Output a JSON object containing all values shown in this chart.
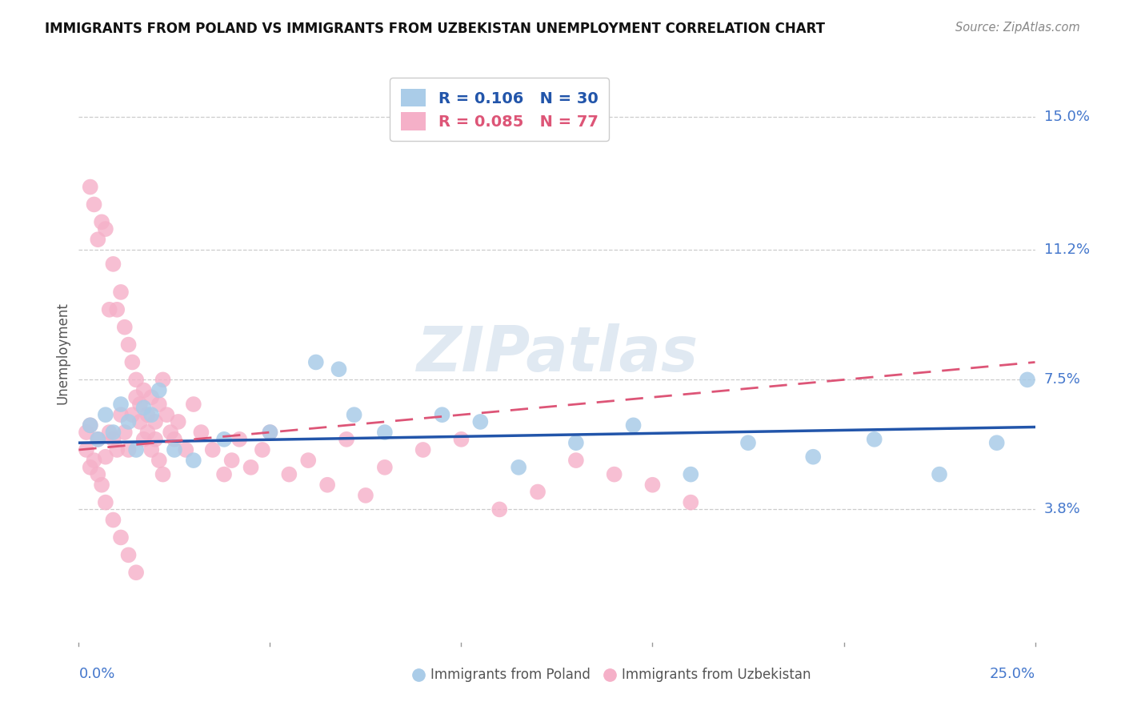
{
  "title": "IMMIGRANTS FROM POLAND VS IMMIGRANTS FROM UZBEKISTAN UNEMPLOYMENT CORRELATION CHART",
  "source": "Source: ZipAtlas.com",
  "ylabel": "Unemployment",
  "ytick_labels": [
    "15.0%",
    "11.2%",
    "7.5%",
    "3.8%"
  ],
  "ytick_values": [
    0.15,
    0.112,
    0.075,
    0.038
  ],
  "xlim": [
    0.0,
    0.25
  ],
  "ylim": [
    0.0,
    0.165
  ],
  "legend_poland_R": "0.106",
  "legend_poland_N": "30",
  "legend_uzbekistan_R": "0.085",
  "legend_uzbekistan_N": "77",
  "poland_color": "#aacce8",
  "uzbekistan_color": "#f5b0c8",
  "poland_line_color": "#2255aa",
  "uzbekistan_line_color": "#dd5577",
  "poland_line_slope": 0.018,
  "poland_line_intercept": 0.057,
  "uzbekistan_line_slope": 0.1,
  "uzbekistan_line_intercept": 0.055,
  "poland_x": [
    0.003,
    0.005,
    0.007,
    0.009,
    0.011,
    0.013,
    0.015,
    0.017,
    0.019,
    0.021,
    0.025,
    0.03,
    0.038,
    0.05,
    0.062,
    0.068,
    0.072,
    0.08,
    0.095,
    0.105,
    0.115,
    0.13,
    0.145,
    0.16,
    0.175,
    0.192,
    0.208,
    0.225,
    0.24,
    0.248
  ],
  "poland_y": [
    0.062,
    0.058,
    0.065,
    0.06,
    0.068,
    0.063,
    0.055,
    0.067,
    0.065,
    0.072,
    0.055,
    0.052,
    0.058,
    0.06,
    0.08,
    0.078,
    0.065,
    0.06,
    0.065,
    0.063,
    0.05,
    0.057,
    0.062,
    0.048,
    0.057,
    0.053,
    0.058,
    0.048,
    0.057,
    0.075
  ],
  "uzbekistan_x": [
    0.002,
    0.002,
    0.003,
    0.003,
    0.004,
    0.004,
    0.005,
    0.005,
    0.006,
    0.006,
    0.007,
    0.007,
    0.008,
    0.008,
    0.009,
    0.009,
    0.01,
    0.01,
    0.011,
    0.011,
    0.012,
    0.012,
    0.013,
    0.013,
    0.014,
    0.014,
    0.015,
    0.015,
    0.016,
    0.016,
    0.017,
    0.017,
    0.018,
    0.018,
    0.019,
    0.019,
    0.02,
    0.02,
    0.021,
    0.021,
    0.022,
    0.022,
    0.023,
    0.024,
    0.025,
    0.026,
    0.028,
    0.03,
    0.032,
    0.035,
    0.038,
    0.04,
    0.042,
    0.045,
    0.048,
    0.05,
    0.055,
    0.06,
    0.065,
    0.07,
    0.075,
    0.08,
    0.09,
    0.1,
    0.11,
    0.12,
    0.13,
    0.14,
    0.15,
    0.16,
    0.003,
    0.005,
    0.007,
    0.009,
    0.011,
    0.013,
    0.015
  ],
  "uzbekistan_y": [
    0.06,
    0.055,
    0.13,
    0.05,
    0.125,
    0.052,
    0.115,
    0.058,
    0.12,
    0.045,
    0.118,
    0.053,
    0.095,
    0.06,
    0.108,
    0.058,
    0.095,
    0.055,
    0.1,
    0.065,
    0.09,
    0.06,
    0.085,
    0.055,
    0.08,
    0.065,
    0.075,
    0.07,
    0.068,
    0.063,
    0.072,
    0.058,
    0.065,
    0.06,
    0.07,
    0.055,
    0.063,
    0.058,
    0.068,
    0.052,
    0.075,
    0.048,
    0.065,
    0.06,
    0.058,
    0.063,
    0.055,
    0.068,
    0.06,
    0.055,
    0.048,
    0.052,
    0.058,
    0.05,
    0.055,
    0.06,
    0.048,
    0.052,
    0.045,
    0.058,
    0.042,
    0.05,
    0.055,
    0.058,
    0.038,
    0.043,
    0.052,
    0.048,
    0.045,
    0.04,
    0.062,
    0.048,
    0.04,
    0.035,
    0.03,
    0.025,
    0.02
  ]
}
